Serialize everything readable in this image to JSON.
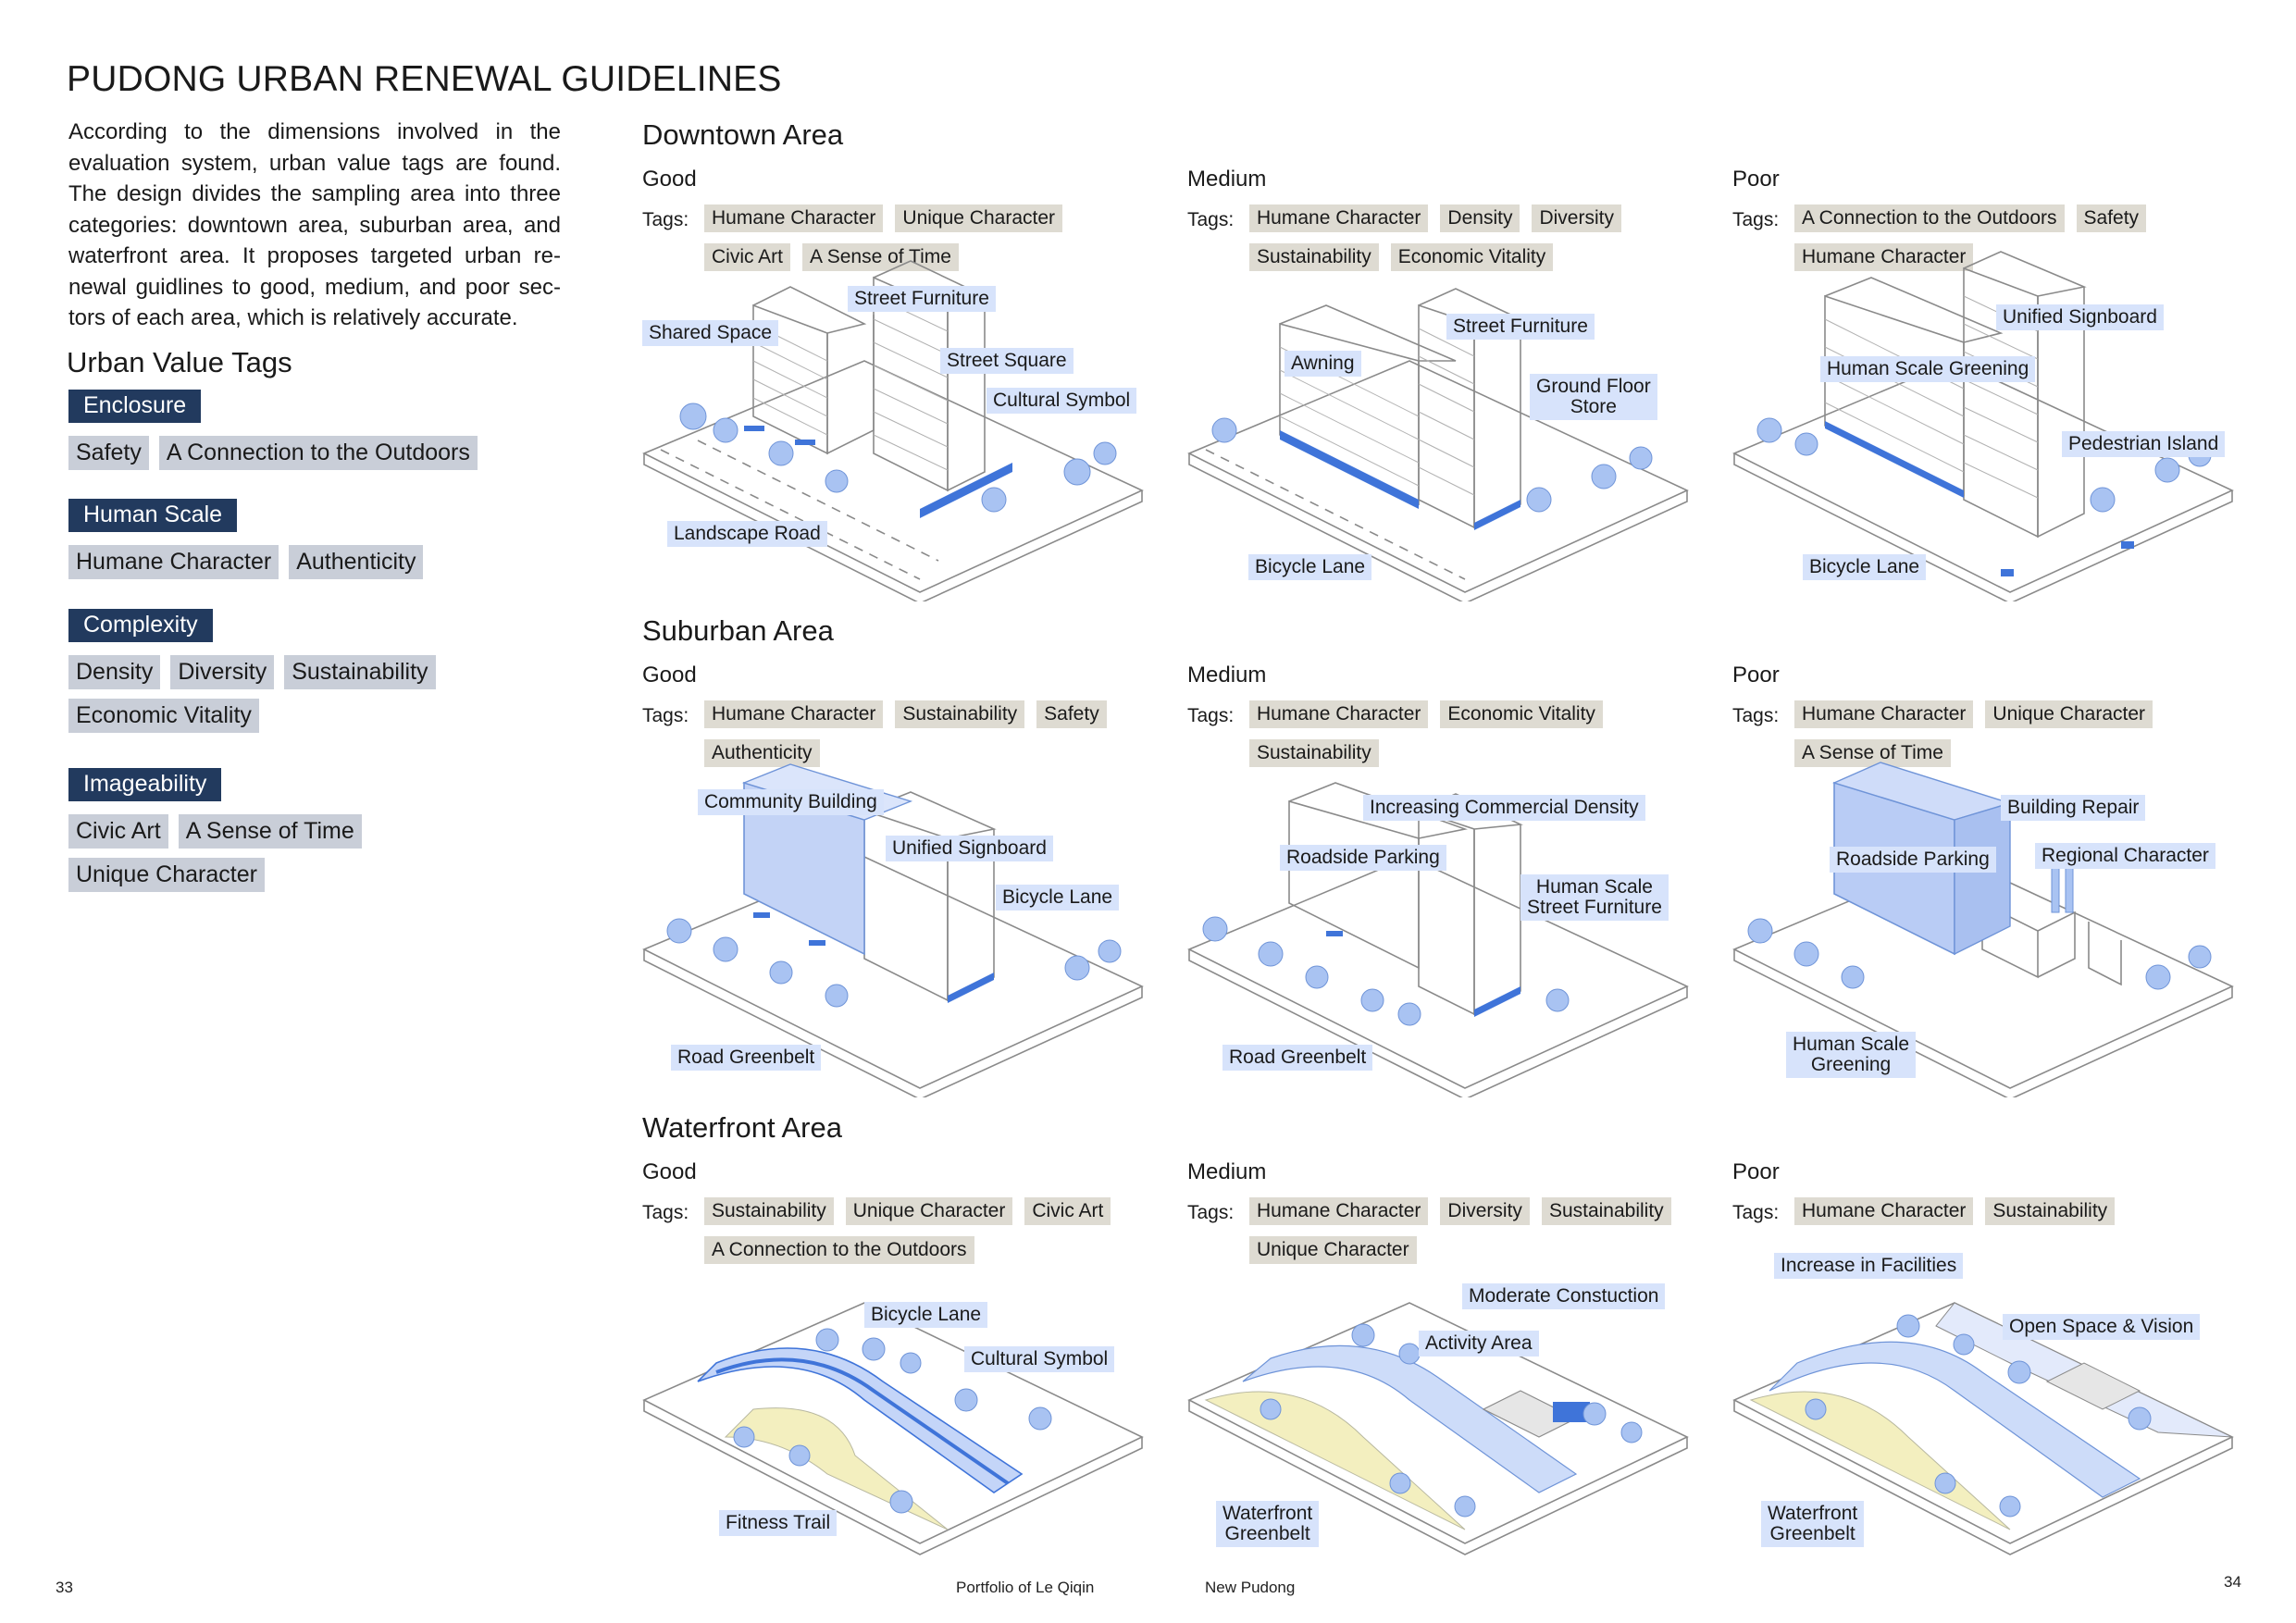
{
  "page_title": "PUDONG URBAN RENEWAL GUIDELINES",
  "intro": "According to the dimensions involved in the evaluation system, urban value tags are found. The design divides the sampling area into three categories: downtown area, suburban area, and waterfront area. It proposes targeted urban re-newal guidlines to good, medium, and poor sec-tors of each area, which is relatively accurate.",
  "tags_heading": "Urban Value Tags",
  "value_categories": [
    {
      "label": "Enclosure",
      "tags": [
        "Safety",
        "A Connection to the Outdoors"
      ]
    },
    {
      "label": "Human Scale",
      "tags": [
        "Humane Character",
        "Authenticity"
      ]
    },
    {
      "label": "Complexity",
      "tags": [
        "Density",
        "Diversity",
        "Sustainability",
        "Economic Vitality"
      ]
    },
    {
      "label": "Imageability",
      "tags": [
        "Civic Art",
        "A Sense of Time",
        "Unique Character"
      ]
    }
  ],
  "tags_prefix": "Tags:",
  "areas": [
    {
      "title": "Downtown Area",
      "cells": [
        {
          "rating": "Good",
          "tags": [
            "Humane Character",
            "Unique Character",
            "Civic Art",
            "A Sense of Time"
          ],
          "callouts": [
            "Street Furniture",
            "Shared Space",
            "Street Square",
            "Cultural Symbol",
            "Landscape Road"
          ]
        },
        {
          "rating": "Medium",
          "tags": [
            "Humane Character",
            "Density",
            "Diversity",
            "Sustainability",
            "Economic Vitality"
          ],
          "callouts": [
            "Street Furniture",
            "Awning",
            "Ground Floor\nStore",
            "Bicycle Lane"
          ]
        },
        {
          "rating": "Poor",
          "tags": [
            "A Connection to the Outdoors",
            "Safety",
            "Humane Character"
          ],
          "callouts": [
            "Unified Signboard",
            "Human Scale Greening",
            "Pedestrian Island",
            "Bicycle Lane"
          ]
        }
      ]
    },
    {
      "title": "Suburban Area",
      "cells": [
        {
          "rating": "Good",
          "tags": [
            "Humane Character",
            "Sustainability",
            "Safety",
            "Authenticity"
          ],
          "callouts": [
            "Community Building",
            "Unified Signboard",
            "Bicycle Lane",
            "Road Greenbelt"
          ]
        },
        {
          "rating": "Medium",
          "tags": [
            "Humane Character",
            "Economic Vitality",
            "Sustainability"
          ],
          "callouts": [
            "Increasing Commercial Density",
            "Roadside Parking",
            "Human Scale\nStreet Furniture",
            "Road Greenbelt"
          ]
        },
        {
          "rating": "Poor",
          "tags": [
            "Humane Character",
            "Unique Character",
            "A Sense of Time"
          ],
          "callouts": [
            "Building Repair",
            "Roadside Parking",
            "Regional Character",
            "Human Scale\nGreening"
          ]
        }
      ]
    },
    {
      "title": "Waterfront Area",
      "cells": [
        {
          "rating": "Good",
          "tags": [
            "Sustainability",
            "Unique Character",
            "Civic Art",
            "A Connection to the Outdoors"
          ],
          "callouts": [
            "Bicycle Lane",
            "Cultural Symbol",
            "Fitness Trail"
          ]
        },
        {
          "rating": "Medium",
          "tags": [
            "Humane Character",
            "Diversity",
            "Sustainability",
            "Unique Character"
          ],
          "callouts": [
            "Moderate Constuction",
            "Activity Area",
            "Waterfront\nGreenbelt"
          ]
        },
        {
          "rating": "Poor",
          "tags": [
            "Humane Character",
            "Sustainability"
          ],
          "callouts": [
            "Increase in Facilities",
            "Open Space & Vision",
            "Waterfront\nGreenbelt"
          ]
        }
      ]
    }
  ],
  "footer": {
    "page_left": "33",
    "portfolio": "Portfolio of Le Qiqin",
    "project": "New Pudong",
    "page_right": "34"
  },
  "colors": {
    "category_fill": "#223a5e",
    "value_tag_fill": "#c9ced8",
    "sample_tag_fill": "#dedbd2",
    "callout_fill": "#d7e3fb",
    "accent_blue": "#3f74d9",
    "drawing_line": "#8a8a8a"
  }
}
